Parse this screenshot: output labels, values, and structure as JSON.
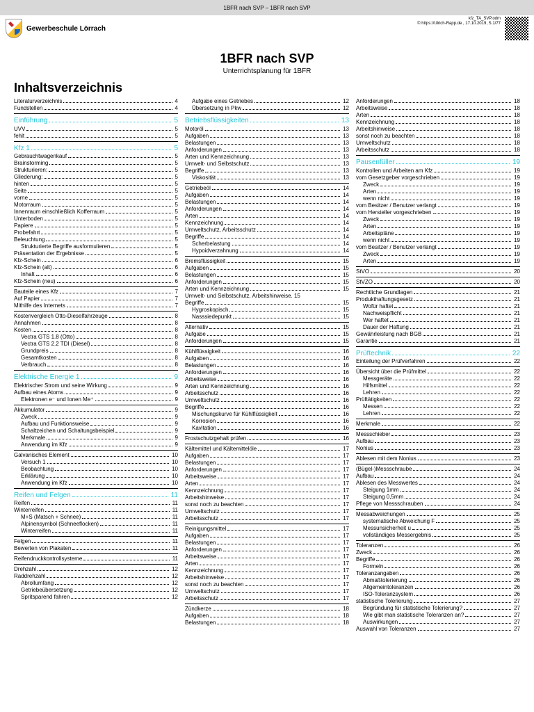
{
  "header": {
    "bar_title": "1BFR nach SVP – 1BFR nach SVP",
    "school": "Gewerbeschule Lörrach",
    "file": "kfz_TA_SVP.odm",
    "footer": "© https://Ulrich-Rapp.de , 17.10.2019, S.1/77"
  },
  "title": "1BFR nach SVP",
  "subtitle": "Unterrichtsplanung für 1BFR",
  "toc_heading": "Inhaltsverzeichnis",
  "columns": [
    [
      {
        "t": "Literaturverzeichnis",
        "p": "4",
        "l": 1
      },
      {
        "t": "Fundstellen",
        "p": "4",
        "l": 1
      },
      {
        "t": "Einführung",
        "p": "5",
        "s": true,
        "rule": true
      },
      {
        "t": "UVV",
        "p": "5",
        "l": 1
      },
      {
        "t": "fehlt",
        "p": "5",
        "l": 1
      },
      {
        "t": "Kfz 1",
        "p": "5",
        "s": true,
        "rule": true
      },
      {
        "t": "Gebrauchtwagenkauf",
        "p": "5",
        "l": 1
      },
      {
        "t": "Brainstorming",
        "p": "5",
        "l": 1
      },
      {
        "t": "Strukturieren:",
        "p": "5",
        "l": 1
      },
      {
        "t": "Gliederung:",
        "p": "5",
        "l": 1
      },
      {
        "t": "hinten",
        "p": "5",
        "l": 1
      },
      {
        "t": "Seite",
        "p": "5",
        "l": 1
      },
      {
        "t": "vorne",
        "p": "5",
        "l": 1
      },
      {
        "t": "Motorraum",
        "p": "5",
        "l": 1
      },
      {
        "t": "Innenraum einschließlich Kofferraum",
        "p": "5",
        "l": 1
      },
      {
        "t": "Unterboden",
        "p": "5",
        "l": 1
      },
      {
        "t": "Papiere",
        "p": "5",
        "l": 1
      },
      {
        "t": "Probefahrt",
        "p": "5",
        "l": 1
      },
      {
        "t": "Beleuchtung",
        "p": "5",
        "l": 1
      },
      {
        "t": "Strukturierte Begriffe ausformulieren",
        "p": "5",
        "l": 2
      },
      {
        "t": "Präsentation der Ergebnisse",
        "p": "5",
        "l": 1
      },
      {
        "t": "Kfz-Schein",
        "p": "6",
        "l": 1
      },
      {
        "t": "Kfz-Schein (alt)",
        "p": "6",
        "l": 1
      },
      {
        "t": "Inhalt",
        "p": "6",
        "l": 2
      },
      {
        "t": "Kfz-Schein (neu)",
        "p": "6",
        "l": 1
      },
      {
        "t": "Bauteile eines Kfz",
        "p": "7",
        "l": 1,
        "rule": true
      },
      {
        "t": "Auf Papier",
        "p": "7",
        "l": 1
      },
      {
        "t": "Mithilfe des Internets",
        "p": "7",
        "l": 1
      },
      {
        "t": "Kostenvergleich Otto-Dieselfahrzeuge",
        "p": "8",
        "l": 1,
        "rule": true
      },
      {
        "t": "Annahmen",
        "p": "8",
        "l": 1
      },
      {
        "t": "Kosten",
        "p": "8",
        "l": 1
      },
      {
        "t": "Vectra GTS 1.8 (Otto)",
        "p": "8",
        "l": 2
      },
      {
        "t": "Vectra GTS 2.2 TDI (Diesel)",
        "p": "8",
        "l": 2
      },
      {
        "t": "Grundpreis",
        "p": "8",
        "l": 2
      },
      {
        "t": "Gesamtkosten",
        "p": "8",
        "l": 2
      },
      {
        "t": "Verbrauch",
        "p": "8",
        "l": 2
      },
      {
        "t": "Elektrische Energie 1",
        "p": "9",
        "s": true,
        "rule": true
      },
      {
        "t": "Elektrischer Strom und seine Wirkung",
        "p": "9",
        "l": 1
      },
      {
        "t": "Aufbau eines Atoms",
        "p": "9",
        "l": 1
      },
      {
        "t": "Elektronen e⁻ und Ionen Me⁺",
        "p": "9",
        "l": 2
      },
      {
        "t": "Akkumulator",
        "p": "9",
        "l": 1,
        "rule": true
      },
      {
        "t": "Zweck",
        "p": "9",
        "l": 2
      },
      {
        "t": "Aufbau und Funktionsweise",
        "p": "9",
        "l": 2
      },
      {
        "t": "Schaltzeichen und Schaltungsbeispiel",
        "p": "9",
        "l": 2
      },
      {
        "t": "Merkmale",
        "p": "9",
        "l": 2
      },
      {
        "t": "Anwendung im Kfz",
        "p": "9",
        "l": 2
      },
      {
        "t": "Galvanisches Element",
        "p": "10",
        "l": 1,
        "rule": true
      },
      {
        "t": "Versuch 1",
        "p": "10",
        "l": 2
      },
      {
        "t": "Beobachtung",
        "p": "10",
        "l": 2
      },
      {
        "t": "Erklärung",
        "p": "10",
        "l": 2
      },
      {
        "t": "Anwendung im Kfz",
        "p": "10",
        "l": 2
      },
      {
        "t": "Reifen und Felgen",
        "p": "11",
        "s": true,
        "rule": true
      },
      {
        "t": "Reifen",
        "p": "11",
        "l": 1
      },
      {
        "t": "Winterreifen",
        "p": "11",
        "l": 1
      },
      {
        "t": "M+S (Matsch + Schnee)",
        "p": "11",
        "l": 2
      },
      {
        "t": "Alpinensymbol (Schneeflocken)",
        "p": "11",
        "l": 2
      },
      {
        "t": "Winterreifen",
        "p": "11",
        "l": 2
      },
      {
        "t": "Felgen",
        "p": "11",
        "l": 1,
        "rule": true
      },
      {
        "t": "Bewerten von Plakaten",
        "p": "11",
        "l": 1
      },
      {
        "t": "Reifendruckkontrollsysteme",
        "p": "11",
        "l": 1,
        "rule": true
      },
      {
        "t": "Drehzahl",
        "p": "12",
        "l": 1,
        "rule": true
      },
      {
        "t": "Raddrehzahl",
        "p": "12",
        "l": 1
      },
      {
        "t": "Abrollumfang",
        "p": "12",
        "l": 2
      },
      {
        "t": "Getriebeübersetzung",
        "p": "12",
        "l": 2
      },
      {
        "t": "Spritsparend fahren",
        "p": "12",
        "l": 2
      }
    ],
    [
      {
        "t": "Aufgabe eines Getriebes",
        "p": "12",
        "l": 2
      },
      {
        "t": "Übersetzung in Pkw",
        "p": "12",
        "l": 2
      },
      {
        "t": "Betriebsflüssigkeiten",
        "p": "13",
        "s": true,
        "rule": true
      },
      {
        "t": "Motoröl",
        "p": "13",
        "l": 1
      },
      {
        "t": "Aufgaben",
        "p": "13",
        "l": 1
      },
      {
        "t": "Belastungen",
        "p": "13",
        "l": 1
      },
      {
        "t": "Anforderungen",
        "p": "13",
        "l": 1
      },
      {
        "t": "Arten und Kennzeichnung",
        "p": "13",
        "l": 1
      },
      {
        "t": "Umwelt- und Selbstschutz",
        "p": "13",
        "l": 1
      },
      {
        "t": "Begriffe",
        "p": "13",
        "l": 1
      },
      {
        "t": "Viskosität",
        "p": "13",
        "l": 2
      },
      {
        "t": "Getriebeöl",
        "p": "14",
        "l": 1,
        "rule": true
      },
      {
        "t": "Aufgaben",
        "p": "14",
        "l": 1
      },
      {
        "t": "Belastungen",
        "p": "14",
        "l": 1
      },
      {
        "t": "Anforderungen",
        "p": "14",
        "l": 1
      },
      {
        "t": "Arten",
        "p": "14",
        "l": 1
      },
      {
        "t": "Kennzeichnung",
        "p": "14",
        "l": 1
      },
      {
        "t": "Umweltschutz, Arbeitsschutz",
        "p": "14",
        "l": 1
      },
      {
        "t": "Begriffe",
        "p": "14",
        "l": 1
      },
      {
        "t": "Scherbelastung",
        "p": "14",
        "l": 2
      },
      {
        "t": "Hypoidverzahnung",
        "p": "14",
        "l": 2
      },
      {
        "t": "Bremsflüssigkeit",
        "p": "15",
        "l": 1,
        "rule": true
      },
      {
        "t": "Aufgaben",
        "p": "15",
        "l": 1
      },
      {
        "t": "Belastungen",
        "p": "15",
        "l": 1
      },
      {
        "t": "Anforderungen",
        "p": "15",
        "l": 1
      },
      {
        "t": "Arten und Kennzeichnung",
        "p": "15",
        "l": 1
      },
      {
        "t": "Umwelt- und Selbstschutz, Arbeitshinweise. 15",
        "l": 1,
        "nodots": true
      },
      {
        "t": "Begriffe",
        "p": "15",
        "l": 1
      },
      {
        "t": "Hygroskopisch",
        "p": "15",
        "l": 2
      },
      {
        "t": "Nasssiedepunkt",
        "p": "15",
        "l": 2
      },
      {
        "t": "Alternativ",
        "p": "15",
        "l": 1,
        "rule": true
      },
      {
        "t": "Aufgabe",
        "p": "15",
        "l": 1
      },
      {
        "t": "Anforderungen",
        "p": "15",
        "l": 1
      },
      {
        "t": "Kühlflüssigkeit",
        "p": "16",
        "l": 1,
        "rule": true
      },
      {
        "t": "Aufgaben",
        "p": "16",
        "l": 1
      },
      {
        "t": "Belastungen",
        "p": "16",
        "l": 1
      },
      {
        "t": "Anforderungen",
        "p": "16",
        "l": 1
      },
      {
        "t": "Arbeitsweise",
        "p": "16",
        "l": 1
      },
      {
        "t": "Arten und Kennzeichnung",
        "p": "16",
        "l": 1
      },
      {
        "t": "Arbeitsschutz",
        "p": "16",
        "l": 1
      },
      {
        "t": "Umweltschutz",
        "p": "16",
        "l": 1
      },
      {
        "t": "Begriffe",
        "p": "16",
        "l": 1
      },
      {
        "t": "Mischungskurve für Kühlflüssigkeit",
        "p": "16",
        "l": 2
      },
      {
        "t": "Korrosion",
        "p": "16",
        "l": 2
      },
      {
        "t": "Kavitation",
        "p": "16",
        "l": 2
      },
      {
        "t": "Frostschutzgehalt prüfen",
        "p": "16",
        "l": 1,
        "rule": true
      },
      {
        "t": "Kältemittel und Kältemittelöle",
        "p": "17",
        "l": 1,
        "rule": true
      },
      {
        "t": "Aufgaben",
        "p": "17",
        "l": 1
      },
      {
        "t": "Belastungen",
        "p": "17",
        "l": 1
      },
      {
        "t": "Anforderungen",
        "p": "17",
        "l": 1
      },
      {
        "t": "Arbeitsweise",
        "p": "17",
        "l": 1
      },
      {
        "t": "Arten",
        "p": "17",
        "l": 1
      },
      {
        "t": "Kennzeichnung",
        "p": "17",
        "l": 1
      },
      {
        "t": "Arbeitshinweise",
        "p": "17",
        "l": 1
      },
      {
        "t": "sonst noch zu beachten",
        "p": "17",
        "l": 1
      },
      {
        "t": "Umweltschutz",
        "p": "17",
        "l": 1
      },
      {
        "t": "Arbeitsschutz",
        "p": "17",
        "l": 1
      },
      {
        "t": "Reinigungsmittel",
        "p": "17",
        "l": 1,
        "rule": true
      },
      {
        "t": "Aufgaben",
        "p": "17",
        "l": 1
      },
      {
        "t": "Belastungen",
        "p": "17",
        "l": 1
      },
      {
        "t": "Anforderungen",
        "p": "17",
        "l": 1
      },
      {
        "t": "Arbeitsweise",
        "p": "17",
        "l": 1
      },
      {
        "t": "Arten",
        "p": "17",
        "l": 1
      },
      {
        "t": "Kennzeichnung",
        "p": "17",
        "l": 1
      },
      {
        "t": "Arbeitshinweise",
        "p": "17",
        "l": 1
      },
      {
        "t": "sonst noch zu beachten",
        "p": "17",
        "l": 1
      },
      {
        "t": "Umweltschutz",
        "p": "17",
        "l": 1
      },
      {
        "t": "Arbeitsschutz",
        "p": "17",
        "l": 1
      },
      {
        "t": "Zündkerze",
        "p": "18",
        "l": 1,
        "rule": true
      },
      {
        "t": "Aufgaben",
        "p": "18",
        "l": 1
      },
      {
        "t": "Belastungen",
        "p": "18",
        "l": 1
      }
    ],
    [
      {
        "t": "Anforderungen",
        "p": "18",
        "l": 1
      },
      {
        "t": "Arbeitsweise",
        "p": "18",
        "l": 1
      },
      {
        "t": "Arten",
        "p": "18",
        "l": 1
      },
      {
        "t": "Kennzeichnung",
        "p": "18",
        "l": 1
      },
      {
        "t": "Arbeitshinweise",
        "p": "18",
        "l": 1
      },
      {
        "t": "sonst noch zu beachten",
        "p": "18",
        "l": 1
      },
      {
        "t": "Umweltschutz",
        "p": "18",
        "l": 1
      },
      {
        "t": "Arbeitsschutz",
        "p": "18",
        "l": 1
      },
      {
        "t": "Pausenfüller",
        "p": "19",
        "s": true,
        "rule": true
      },
      {
        "t": "Kontrollen und Arbeiten am Kfz",
        "p": "19",
        "l": 1
      },
      {
        "t": "vom Gesetzgeber vorgeschrieben",
        "p": "19",
        "l": 1
      },
      {
        "t": "Zweck",
        "p": "19",
        "l": 2
      },
      {
        "t": "Arten",
        "p": "19",
        "l": 2
      },
      {
        "t": "wenn nicht",
        "p": "19",
        "l": 2
      },
      {
        "t": "vom Besitzer / Benutzer verlangt",
        "p": "19",
        "l": 1
      },
      {
        "t": "vom Hersteller vorgeschrieben",
        "p": "19",
        "l": 1
      },
      {
        "t": "Zweck",
        "p": "19",
        "l": 2
      },
      {
        "t": "Arten",
        "p": "19",
        "l": 2
      },
      {
        "t": "Arbeitspläne",
        "p": "19",
        "l": 2
      },
      {
        "t": "wenn nicht",
        "p": "19",
        "l": 2
      },
      {
        "t": "vom Besitzer / Benutzer verlangt",
        "p": "19",
        "l": 1
      },
      {
        "t": "Zweck",
        "p": "19",
        "l": 2
      },
      {
        "t": "Arten",
        "p": "19",
        "l": 2
      },
      {
        "t": "StVO",
        "p": "20",
        "l": 1,
        "rule": true
      },
      {
        "t": "StVZO",
        "p": "20",
        "l": 1,
        "rule": true
      },
      {
        "t": "Rechtliche Grundlagen",
        "p": "21",
        "l": 1,
        "rule": true
      },
      {
        "t": "Produkthaftungsgesetz",
        "p": "21",
        "l": 1
      },
      {
        "t": "Wofür haftet",
        "p": "21",
        "l": 2
      },
      {
        "t": "Nachweispflicht",
        "p": "21",
        "l": 2
      },
      {
        "t": "Wer haftet",
        "p": "21",
        "l": 2
      },
      {
        "t": "Dauer der Haftung",
        "p": "21",
        "l": 2
      },
      {
        "t": "Gewährleistung nach BGB",
        "p": "21",
        "l": 1
      },
      {
        "t": "Garantie",
        "p": "21",
        "l": 1
      },
      {
        "t": "Prüftechnik",
        "p": "22",
        "s": true,
        "rule": true
      },
      {
        "t": "Einteilung der Prüfverfahren",
        "p": "22",
        "l": 1
      },
      {
        "t": "Übersicht über die Prüfmittel",
        "p": "22",
        "l": 1,
        "rule": true
      },
      {
        "t": "Messgeräte",
        "p": "22",
        "l": 2
      },
      {
        "t": "Hilfsmittel",
        "p": "22",
        "l": 2
      },
      {
        "t": "Lehren",
        "p": "22",
        "l": 2
      },
      {
        "t": "Prüftätigkeiten",
        "p": "22",
        "l": 1
      },
      {
        "t": "Messen",
        "p": "22",
        "l": 2
      },
      {
        "t": "Lehren",
        "p": "22",
        "l": 2
      },
      {
        "t": "Merkmale",
        "p": "22",
        "l": 1,
        "rule": true
      },
      {
        "t": "Messschieber",
        "p": "23",
        "l": 1,
        "rule": true
      },
      {
        "t": "Aufbau",
        "p": "23",
        "l": 1
      },
      {
        "t": "Nonius",
        "p": "23",
        "l": 1
      },
      {
        "t": "Ablesen mit dem Nonius",
        "p": "23",
        "l": 1,
        "rule": true
      },
      {
        "t": "(Bügel-)Messschraube",
        "p": "24",
        "l": 1,
        "rule": true
      },
      {
        "t": "Aufbau",
        "p": "24",
        "l": 1
      },
      {
        "t": "Ablesen des Messwertes",
        "p": "24",
        "l": 1
      },
      {
        "t": "Steigung 1mm",
        "p": "24",
        "l": 2
      },
      {
        "t": "Steigung 0,5mm",
        "p": "24",
        "l": 2
      },
      {
        "t": "Pflege von Messschrauben",
        "p": "24",
        "l": 1
      },
      {
        "t": "Messabweichungen",
        "p": "25",
        "l": 1,
        "rule": true
      },
      {
        "t": "systematische Abweichung F",
        "p": "25",
        "l": 2
      },
      {
        "t": "Messunsicherheit u",
        "p": "25",
        "l": 2
      },
      {
        "t": "vollständiges Messergebnis",
        "p": "25",
        "l": 2
      },
      {
        "t": "Toleranzen",
        "p": "26",
        "l": 1,
        "rule": true
      },
      {
        "t": "Zweck",
        "p": "26",
        "l": 1
      },
      {
        "t": "Begriffe",
        "p": "26",
        "l": 1
      },
      {
        "t": "Formeln",
        "p": "26",
        "l": 2
      },
      {
        "t": "Toleranzangaben",
        "p": "26",
        "l": 1
      },
      {
        "t": "Abmaßtolerierung",
        "p": "26",
        "l": 2
      },
      {
        "t": "Allgemeintoleranzen",
        "p": "26",
        "l": 2
      },
      {
        "t": "ISO-Toleranzsystem",
        "p": "26",
        "l": 2
      },
      {
        "t": "statistische Tolerierung",
        "p": "27",
        "l": 1
      },
      {
        "t": "Begründung für statistische Tolerierung?",
        "p": "27",
        "l": 2
      },
      {
        "t": "Wie gibt man statistische Toleranzen an?",
        "p": "27",
        "l": 2
      },
      {
        "t": "Auswirkungen",
        "p": "27",
        "l": 2
      },
      {
        "t": "Auswahl von Toleranzen",
        "p": "27",
        "l": 1
      }
    ]
  ]
}
